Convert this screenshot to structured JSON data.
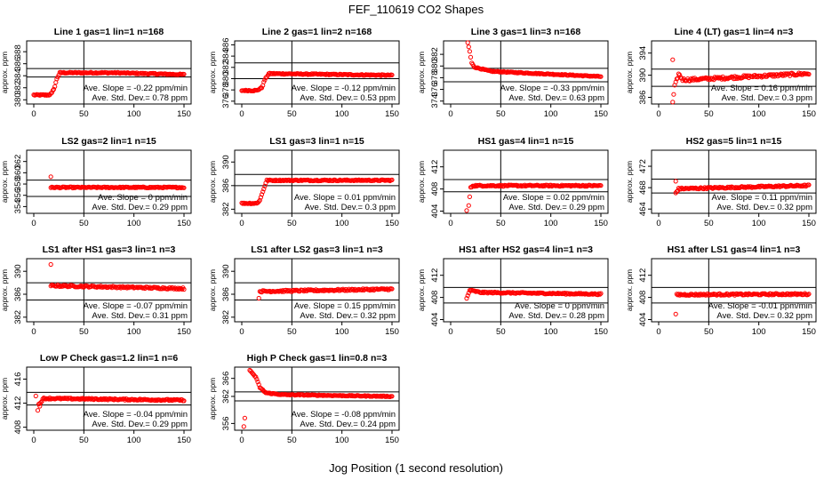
{
  "figure": {
    "title": "FEF_110619  CO2 Shapes",
    "xlabel": "Jog Position (1 second resolution)"
  },
  "chart_data": [
    {
      "type": "scatter",
      "title": "Line 1 gas=1 lin=1 n=168",
      "ylabel": "approx. ppm",
      "xlim": [
        0,
        150
      ],
      "xticks": [
        0,
        50,
        100,
        150
      ],
      "ylim": [
        379.3,
        389.8
      ],
      "yticks": [
        380,
        382,
        384,
        386,
        388
      ],
      "hlines": [
        383.8,
        385.2
      ],
      "vline": 50,
      "slope": "Ave. Slope = -0.22 ppm/min",
      "stddev": "Ave. Std. Dev.= 0.78 ppm",
      "series": [
        {
          "name": "",
          "shape": [
            [
              0,
              380.8
            ],
            [
              15,
              380.8
            ],
            [
              18,
              381.1
            ],
            [
              21,
              382.2
            ],
            [
              23,
              383.5
            ],
            [
              26,
              384.5
            ],
            [
              80,
              384.5
            ],
            [
              150,
              384.2
            ]
          ],
          "noise": 0.1
        }
      ]
    },
    {
      "type": "scatter",
      "title": "Line 2 gas=1 lin=2 n=168",
      "ylabel": "approx. ppm",
      "xlim": [
        0,
        150
      ],
      "xticks": [
        0,
        50,
        100,
        150
      ],
      "ylim": [
        375.5,
        386.7
      ],
      "yticks": [
        376,
        378,
        380,
        382,
        384,
        386
      ],
      "hlines": [
        380.0,
        382.8
      ],
      "vline": 50,
      "slope": "Ave. Slope = -0.12 ppm/min",
      "stddev": "Ave. Std. Dev.= 0.53 ppm",
      "series": [
        {
          "name": "",
          "shape": [
            [
              0,
              377.9
            ],
            [
              15,
              377.9
            ],
            [
              20,
              378.4
            ],
            [
              23,
              379.8
            ],
            [
              27,
              380.9
            ],
            [
              150,
              380.6
            ]
          ],
          "noise": 0.1
        }
      ]
    },
    {
      "type": "scatter",
      "title": "Line 3 gas=1 lin=3 n=168",
      "ylabel": "approx. ppm",
      "xlim": [
        0,
        150
      ],
      "xticks": [
        0,
        50,
        100,
        150
      ],
      "ylim": [
        373.5,
        384.3
      ],
      "yticks": [
        374,
        376,
        378,
        380,
        382
      ],
      "hlines": [
        377.3,
        379.6
      ],
      "vline": 50,
      "slope": "Ave. Slope = -0.33 ppm/min",
      "stddev": "Ave. Std. Dev.= 0.63 ppm",
      "series": [
        {
          "name": "",
          "shape": [
            [
              17,
              384.0
            ],
            [
              19,
              382.5
            ],
            [
              21,
              380.5
            ],
            [
              24,
              379.8
            ],
            [
              40,
              379.1
            ],
            [
              150,
              378.2
            ]
          ],
          "noise": 0.08
        }
      ]
    },
    {
      "type": "scatter",
      "title": "Line 4 (LT) gas=1 lin=4 n=3",
      "ylabel": "approx. ppm",
      "xlim": [
        0,
        150
      ],
      "xticks": [
        0,
        50,
        100,
        150
      ],
      "ylim": [
        384.8,
        396.2
      ],
      "yticks": [
        386,
        390,
        394
      ],
      "hlines": [
        388.0,
        391.1
      ],
      "vline": 50,
      "slope": "Ave. Slope = 0.16 ppm/min",
      "stddev": "Ave. Std. Dev.= 0.3 ppm",
      "series": [
        {
          "name": "",
          "shape": [
            [
              14,
              385.0
            ],
            [
              16,
              388.0
            ],
            [
              20,
              390.2
            ],
            [
              24,
              389.2
            ],
            [
              30,
              389.2
            ],
            [
              150,
              390.3
            ]
          ],
          "noise": 0.25
        }
      ],
      "extra_points": [
        [
          14,
          392.8
        ]
      ]
    },
    {
      "type": "scatter",
      "title": "LS2 gas=2 lin=1 n=15",
      "ylabel": "approx. ppm",
      "xlim": [
        0,
        150
      ],
      "xticks": [
        0,
        50,
        100,
        150
      ],
      "ylim": [
        352.8,
        364.0
      ],
      "yticks": [
        354,
        356,
        358,
        360,
        362
      ],
      "hlines": [
        355.8,
        358.7
      ],
      "vline": 50,
      "slope": "Ave. Slope = 0 ppm/min",
      "stddev": "Ave. Std. Dev.= 0.29 ppm",
      "series": [
        {
          "name": "",
          "shape": [
            [
              17,
              357.4
            ],
            [
              150,
              357.4
            ]
          ],
          "noise": 0.1
        }
      ],
      "extra_points": [
        [
          17,
          359.3
        ]
      ]
    },
    {
      "type": "scatter",
      "title": "LS1 gas=3 lin=1 n=15",
      "ylabel": "approx. ppm",
      "xlim": [
        0,
        150
      ],
      "xticks": [
        0,
        50,
        100,
        150
      ],
      "ylim": [
        381.3,
        392.0
      ],
      "yticks": [
        382,
        386,
        390
      ],
      "hlines": [
        386.0,
        387.9
      ],
      "vline": 50,
      "slope": "Ave. Slope = 0.01 ppm/min",
      "stddev": "Ave. Std. Dev.= 0.3 ppm",
      "series": [
        {
          "name": "",
          "shape": [
            [
              0,
              383.0
            ],
            [
              15,
              383.0
            ],
            [
              18,
              383.5
            ],
            [
              21,
              385.0
            ],
            [
              25,
              386.9
            ],
            [
              150,
              386.9
            ]
          ],
          "noise": 0.1
        }
      ]
    },
    {
      "type": "scatter",
      "title": "HS1 gas=4 lin=1 n=15",
      "ylabel": "approx. ppm",
      "xlim": [
        0,
        150
      ],
      "xticks": [
        0,
        50,
        100,
        150
      ],
      "ylim": [
        403.6,
        415.0
      ],
      "yticks": [
        404,
        408,
        412
      ],
      "hlines": [
        407.5,
        409.7
      ],
      "vline": 50,
      "slope": "Ave. Slope = 0.02 ppm/min",
      "stddev": "Ave. Std. Dev.= 0.29 ppm",
      "series": [
        {
          "name": "",
          "shape": [
            [
              18,
              405.0
            ],
            [
              20,
              408.2
            ],
            [
              22,
              408.6
            ],
            [
              150,
              408.6
            ]
          ],
          "noise": 0.12
        }
      ],
      "extra_points": [
        [
          16,
          404.1
        ]
      ]
    },
    {
      "type": "scatter",
      "title": "HS2 gas=5 lin=1 n=15",
      "ylabel": "approx. ppm",
      "xlim": [
        0,
        150
      ],
      "xticks": [
        0,
        50,
        100,
        150
      ],
      "ylim": [
        463.2,
        475.0
      ],
      "yticks": [
        464,
        468,
        472
      ],
      "hlines": [
        467.0,
        469.6
      ],
      "vline": 50,
      "slope": "Ave. Slope = 0.11 ppm/min",
      "stddev": "Ave. Std. Dev.= 0.32 ppm",
      "series": [
        {
          "name": "",
          "shape": [
            [
              17,
              467.0
            ],
            [
              20,
              467.8
            ],
            [
              150,
              468.4
            ]
          ],
          "noise": 0.15
        }
      ],
      "extra_points": [
        [
          17,
          469.2
        ]
      ]
    },
    {
      "type": "scatter",
      "title": "LS1 after HS1 gas=3 lin=1 n=3",
      "ylabel": "approx. ppm",
      "xlim": [
        0,
        150
      ],
      "xticks": [
        0,
        50,
        100,
        150
      ],
      "ylim": [
        381.2,
        392.2
      ],
      "yticks": [
        382,
        386,
        390
      ],
      "hlines": [
        385.0,
        388.0
      ],
      "vline": 50,
      "slope": "Ave. Slope = -0.07 ppm/min",
      "stddev": "Ave. Std. Dev.= 0.31 ppm",
      "series": [
        {
          "name": "",
          "shape": [
            [
              17,
              387.5
            ],
            [
              150,
              387.0
            ]
          ],
          "noise": 0.15
        }
      ],
      "extra_points": [
        [
          17,
          391.2
        ]
      ]
    },
    {
      "type": "scatter",
      "title": "LS1 after LS2 gas=3 lin=1 n=3",
      "ylabel": "approx. ppm",
      "xlim": [
        0,
        150
      ],
      "xticks": [
        0,
        50,
        100,
        150
      ],
      "ylim": [
        381.2,
        392.2
      ],
      "yticks": [
        382,
        386,
        390
      ],
      "hlines": [
        385.0,
        388.0
      ],
      "vline": 50,
      "slope": "Ave. Slope = 0.15 ppm/min",
      "stddev": "Ave. Std. Dev.= 0.32 ppm",
      "series": [
        {
          "name": "",
          "shape": [
            [
              18,
              386.5
            ],
            [
              150,
              386.9
            ]
          ],
          "noise": 0.15
        }
      ],
      "extra_points": [
        [
          17,
          385.3
        ]
      ]
    },
    {
      "type": "scatter",
      "title": "HS1 after HS2 gas=4 lin=1 n=3",
      "ylabel": "approx. ppm",
      "xlim": [
        0,
        150
      ],
      "xticks": [
        0,
        50,
        100,
        150
      ],
      "ylim": [
        403.6,
        415.0
      ],
      "yticks": [
        404,
        408,
        412
      ],
      "hlines": [
        407.0,
        409.8
      ],
      "vline": 50,
      "slope": "Ave. Slope = 0 ppm/min",
      "stddev": "Ave. Std. Dev.= 0.28 ppm",
      "series": [
        {
          "name": "",
          "shape": [
            [
              16,
              407.8
            ],
            [
              19,
              409.3
            ],
            [
              30,
              408.9
            ],
            [
              150,
              408.6
            ]
          ],
          "noise": 0.12
        }
      ]
    },
    {
      "type": "scatter",
      "title": "HS1 after LS1 gas=4 lin=1 n=3",
      "ylabel": "approx. ppm",
      "xlim": [
        0,
        150
      ],
      "xticks": [
        0,
        50,
        100,
        150
      ],
      "ylim": [
        403.6,
        415.0
      ],
      "yticks": [
        404,
        408,
        412
      ],
      "hlines": [
        407.0,
        409.8
      ],
      "vline": 50,
      "slope": "Ave. Slope = -0.01 ppm/min",
      "stddev": "Ave. Std. Dev.= 0.32 ppm",
      "series": [
        {
          "name": "",
          "shape": [
            [
              18,
              408.5
            ],
            [
              150,
              408.6
            ]
          ],
          "noise": 0.15
        }
      ],
      "extra_points": [
        [
          17,
          405.0
        ]
      ]
    },
    {
      "type": "scatter",
      "title": "Low P Check gas=1.2 lin=1 n=6",
      "ylabel": "approx. ppm",
      "xlim": [
        0,
        150
      ],
      "xticks": [
        0,
        50,
        100,
        150
      ],
      "ylim": [
        407.5,
        418.0
      ],
      "yticks": [
        408,
        412,
        416
      ],
      "hlines": [
        411.7,
        413.8
      ],
      "vline": 50,
      "slope": "Ave. Slope = -0.04 ppm/min",
      "stddev": "Ave. Std. Dev.= 0.29 ppm",
      "series": [
        {
          "name": "",
          "shape": [
            [
              5,
              411.8
            ],
            [
              10,
              412.8
            ],
            [
              150,
              412.5
            ]
          ],
          "noise": 0.12
        }
      ],
      "extra_points": [
        [
          2,
          413.2
        ],
        [
          4,
          410.8
        ],
        [
          6,
          411.5
        ]
      ]
    },
    {
      "type": "scatter",
      "title": "High P Check gas=1 lin=0.8 n=3",
      "ylabel": "approx. ppm",
      "xlim": [
        0,
        150
      ],
      "xticks": [
        0,
        50,
        100,
        150
      ],
      "ylim": [
        354.5,
        368.5
      ],
      "yticks": [
        356,
        362,
        366
      ],
      "hlines": [
        361.0,
        363.0
      ],
      "vline": 50,
      "slope": "Ave. Slope = -0.08 ppm/min",
      "stddev": "Ave. Std. Dev.= 0.24 ppm",
      "series": [
        {
          "name": "",
          "shape": [
            [
              8,
              367.8
            ],
            [
              14,
              366.3
            ],
            [
              18,
              364.0
            ],
            [
              24,
              362.8
            ],
            [
              40,
              362.4
            ],
            [
              150,
              362.0
            ]
          ],
          "noise": 0.1
        }
      ],
      "extra_points": [
        [
          2,
          355.3
        ],
        [
          3,
          357.2
        ]
      ]
    }
  ],
  "colors": {
    "points": "#ff0000",
    "axes": "#000000",
    "background": "#ffffff"
  }
}
